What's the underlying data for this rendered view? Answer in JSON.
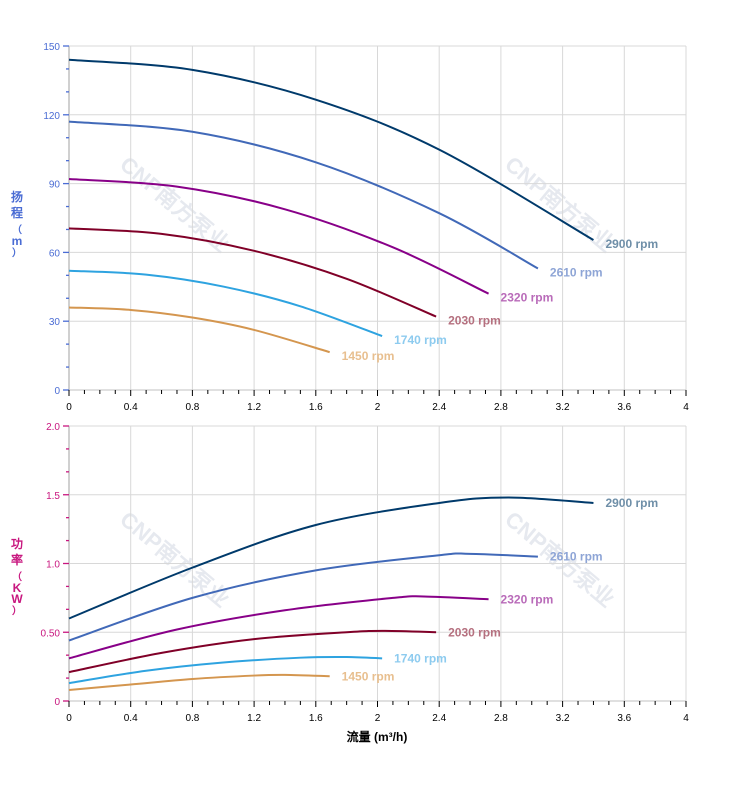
{
  "chart_data": [
    {
      "type": "line",
      "ylabel": "扬程（m）",
      "xlim": [
        0,
        4
      ],
      "ylim": [
        0,
        150
      ],
      "xticks": [
        "0",
        "0.4",
        "0.8",
        "1.2",
        "1.6",
        "2",
        "2.4",
        "2.8",
        "3.2",
        "3.6",
        "4"
      ],
      "yticks": [
        "0",
        "30",
        "60",
        "90",
        "120",
        "150"
      ],
      "axis_color": "#4a6cd4",
      "grid": true,
      "series": [
        {
          "name": "2900 rpm",
          "color": "#003a6b",
          "label_color": "#6f8fa8",
          "x": [
            0,
            0.8,
            1.6,
            2.4,
            3.4
          ],
          "y": [
            144,
            139.6,
            126.6,
            104.8,
            65.4
          ]
        },
        {
          "name": "2610 rpm",
          "color": "#4169b8",
          "label_color": "#8ea5d6",
          "x": [
            0,
            0.8,
            1.6,
            2.4,
            3.04
          ],
          "y": [
            117,
            112.6,
            99.3,
            77.1,
            53
          ]
        },
        {
          "name": "2320 rpm",
          "color": "#880088",
          "label_color": "#b96bb9",
          "x": [
            0,
            0.7,
            1.4,
            2.1,
            2.72
          ],
          "y": [
            92,
            88.7,
            78.8,
            62.2,
            42
          ]
        },
        {
          "name": "2030 rpm",
          "color": "#800028",
          "label_color": "#b5707f",
          "x": [
            0,
            0.6,
            1.2,
            1.8,
            2.38
          ],
          "y": [
            70.5,
            68.1,
            60.7,
            48.5,
            32
          ]
        },
        {
          "name": "1740 rpm",
          "color": "#2ea3e0",
          "label_color": "#8dcbef",
          "x": [
            0,
            0.5,
            1.0,
            1.5,
            2.03
          ],
          "y": [
            52,
            50.3,
            45.1,
            36.5,
            23.5
          ]
        },
        {
          "name": "1450 rpm",
          "color": "#d4964f",
          "label_color": "#e8bf8f",
          "x": [
            0,
            0.4,
            0.8,
            1.2,
            1.69
          ],
          "y": [
            36,
            34.9,
            31.6,
            26.2,
            16.5
          ]
        }
      ]
    },
    {
      "type": "line",
      "xlabel": "流量 (m³/h)",
      "ylabel": "功率（KW）",
      "xlim": [
        0,
        4
      ],
      "ylim": [
        0,
        2.0
      ],
      "xticks": [
        "0",
        "0.4",
        "0.8",
        "1.2",
        "1.6",
        "2",
        "2.4",
        "2.8",
        "3.2",
        "3.6",
        "4"
      ],
      "yticks": [
        "0",
        "0.50",
        "1.0",
        "1.5",
        "2.0"
      ],
      "axis_color": "#c8177f",
      "grid": true,
      "series": [
        {
          "name": "2900 rpm",
          "color": "#003a6b",
          "label_color": "#6f8fa8",
          "x": [
            0,
            0.8,
            1.6,
            2.4,
            2.85,
            3.4
          ],
          "y": [
            0.6,
            0.97,
            1.28,
            1.44,
            1.48,
            1.44
          ]
        },
        {
          "name": "2610 rpm",
          "color": "#4169b8",
          "label_color": "#8ea5d6",
          "x": [
            0,
            0.8,
            1.6,
            2.4,
            2.6,
            3.04
          ],
          "y": [
            0.44,
            0.75,
            0.95,
            1.06,
            1.07,
            1.05
          ]
        },
        {
          "name": "2320 rpm",
          "color": "#880088",
          "label_color": "#b96bb9",
          "x": [
            0,
            0.7,
            1.4,
            2.1,
            2.3,
            2.72
          ],
          "y": [
            0.31,
            0.52,
            0.66,
            0.75,
            0.76,
            0.74
          ]
        },
        {
          "name": "2030 rpm",
          "color": "#800028",
          "label_color": "#b5707f",
          "x": [
            0,
            0.6,
            1.2,
            1.8,
            2.05,
            2.38
          ],
          "y": [
            0.21,
            0.35,
            0.45,
            0.5,
            0.51,
            0.5
          ]
        },
        {
          "name": "1740 rpm",
          "color": "#2ea3e0",
          "label_color": "#8dcbef",
          "x": [
            0,
            0.5,
            1.0,
            1.5,
            1.8,
            2.03
          ],
          "y": [
            0.13,
            0.22,
            0.28,
            0.315,
            0.32,
            0.31
          ]
        },
        {
          "name": "1450 rpm",
          "color": "#d4964f",
          "label_color": "#e8bf8f",
          "x": [
            0,
            0.4,
            0.8,
            1.2,
            1.4,
            1.69
          ],
          "y": [
            0.08,
            0.12,
            0.16,
            0.185,
            0.19,
            0.18
          ]
        }
      ]
    }
  ],
  "watermark": "CNP南方泵业"
}
